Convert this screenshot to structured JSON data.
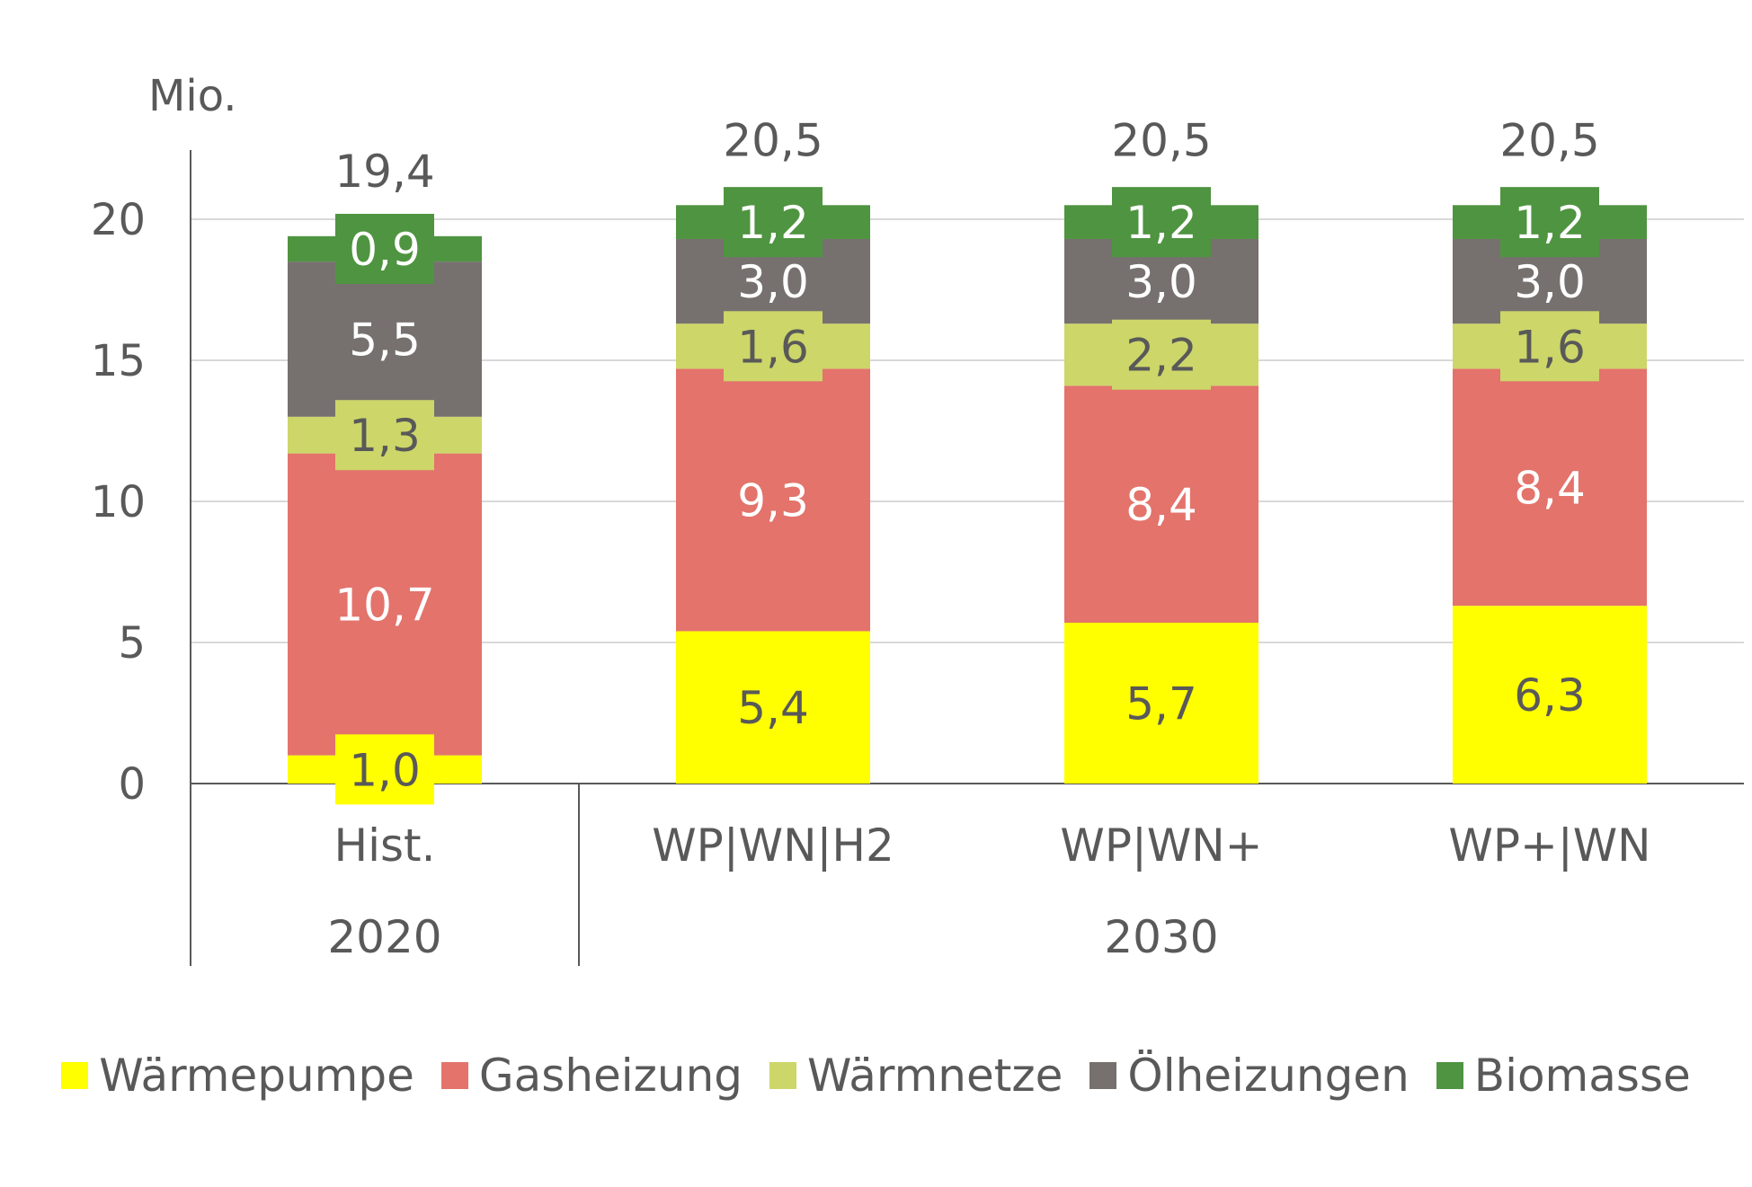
{
  "chart_data": {
    "type": "bar",
    "stacked": true,
    "ylabel": "Mio.",
    "ylim": [
      0,
      22.5
    ],
    "yticks": [
      0,
      5,
      10,
      15,
      20
    ],
    "grid": true,
    "legend_position": "bottom",
    "categories": [
      "Hist.",
      "WP|WN|H2",
      "WP|WN+",
      "WP+|WN"
    ],
    "groups": [
      {
        "label": "2020",
        "categories": [
          "Hist."
        ]
      },
      {
        "label": "2030",
        "categories": [
          "WP|WN|H2",
          "WP|WN+",
          "WP+|WN"
        ]
      }
    ],
    "totals": [
      "19,4",
      "20,5",
      "20,5",
      "20,5"
    ],
    "series": [
      {
        "name": "Wärmepumpe",
        "color": "#ffff00",
        "label_color": "#595959",
        "label_bg": true,
        "values": [
          1.0,
          5.4,
          5.7,
          6.3
        ],
        "labels": [
          "1,0",
          "5,4",
          "5,7",
          "6,3"
        ]
      },
      {
        "name": "Gasheizung",
        "color": "#e3736b",
        "label_color": "#ffffff",
        "label_bg": false,
        "values": [
          10.7,
          9.3,
          8.4,
          8.4
        ],
        "labels": [
          "10,7",
          "9,3",
          "8,4",
          "8,4"
        ]
      },
      {
        "name": "Wärmnetze",
        "color": "#cdd669",
        "label_color": "#595959",
        "label_bg": true,
        "values": [
          1.3,
          1.6,
          2.2,
          1.6
        ],
        "labels": [
          "1,3",
          "1,6",
          "2,2",
          "1,6"
        ]
      },
      {
        "name": "Ölheizungen",
        "color": "#76716e",
        "label_color": "#ffffff",
        "label_bg": false,
        "values": [
          5.5,
          3.0,
          3.0,
          3.0
        ],
        "labels": [
          "5,5",
          "3,0",
          "3,0",
          "3,0"
        ]
      },
      {
        "name": "Biomasse",
        "color": "#4f9440",
        "label_color": "#ffffff",
        "label_bg": true,
        "values": [
          0.9,
          1.2,
          1.2,
          1.2
        ],
        "labels": [
          "0,9",
          "1,2",
          "1,2",
          "1,2"
        ]
      }
    ]
  }
}
